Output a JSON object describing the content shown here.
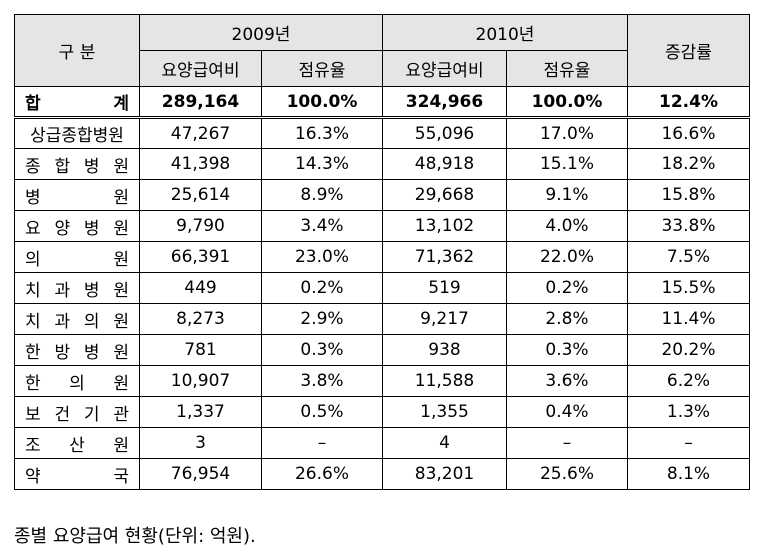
{
  "header": {
    "category": "구 분",
    "year1": "2009년",
    "year2": "2010년",
    "change": "증감률",
    "cost": "요양급여비",
    "share": "점유율"
  },
  "rows": [
    {
      "label": "합 계",
      "cost2009": "289,164",
      "share2009": "100.0%",
      "cost2010": "324,966",
      "share2010": "100.0%",
      "change": "12.4%"
    },
    {
      "label": "상급종합병원",
      "cost2009": "47,267",
      "share2009": "16.3%",
      "cost2010": "55,096",
      "share2010": "17.0%",
      "change": "16.6%"
    },
    {
      "label": "종 합 병 원",
      "cost2009": "41,398",
      "share2009": "14.3%",
      "cost2010": "48,918",
      "share2010": "15.1%",
      "change": "18.2%"
    },
    {
      "label": "병 원",
      "cost2009": "25,614",
      "share2009": "8.9%",
      "cost2010": "29,668",
      "share2010": "9.1%",
      "change": "15.8%"
    },
    {
      "label": "요 양 병 원",
      "cost2009": "9,790",
      "share2009": "3.4%",
      "cost2010": "13,102",
      "share2010": "4.0%",
      "change": "33.8%"
    },
    {
      "label": "의 원",
      "cost2009": "66,391",
      "share2009": "23.0%",
      "cost2010": "71,362",
      "share2010": "22.0%",
      "change": "7.5%"
    },
    {
      "label": "치 과 병 원",
      "cost2009": "449",
      "share2009": "0.2%",
      "cost2010": "519",
      "share2010": "0.2%",
      "change": "15.5%"
    },
    {
      "label": "치 과 의 원",
      "cost2009": "8,273",
      "share2009": "2.9%",
      "cost2010": "9,217",
      "share2010": "2.8%",
      "change": "11.4%"
    },
    {
      "label": "한 방 병 원",
      "cost2009": "781",
      "share2009": "0.3%",
      "cost2010": "938",
      "share2010": "0.3%",
      "change": "20.2%"
    },
    {
      "label": "한 의 원",
      "cost2009": "10,907",
      "share2009": "3.8%",
      "cost2010": "11,588",
      "share2010": "3.6%",
      "change": "6.2%"
    },
    {
      "label": "보 건 기 관",
      "cost2009": "1,337",
      "share2009": "0.5%",
      "cost2010": "1,355",
      "share2010": "0.4%",
      "change": "1.3%"
    },
    {
      "label": "조 산 원",
      "cost2009": "3",
      "share2009": "–",
      "cost2010": "4",
      "share2010": "–",
      "change": "–"
    },
    {
      "label": "약 국",
      "cost2009": "76,954",
      "share2009": "26.6%",
      "cost2010": "83,201",
      "share2010": "25.6%",
      "change": "8.1%"
    }
  ],
  "caption": "종별 요양급여 현황(단위: 억원)."
}
